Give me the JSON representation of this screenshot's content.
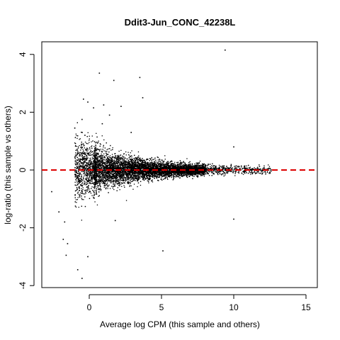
{
  "chart_data": {
    "type": "scatter",
    "title": "Ddit3-Jun_CONC_42238L",
    "xlabel": "Average log CPM (this sample and others)",
    "ylabel": "log-ratio (this sample vs others)",
    "xlim": [
      -2.9,
      15.9
    ],
    "ylim": [
      -4.2,
      4.45
    ],
    "x_ticks": [
      0,
      5,
      10,
      15
    ],
    "y_ticks": [
      -4,
      -2,
      0,
      2,
      4
    ],
    "point_color": "#000000",
    "reference_line": {
      "y": 0,
      "color": "#dd0000",
      "style": "dashed"
    },
    "dense_cloud": {
      "x_range": [
        -1.0,
        12.6
      ],
      "description_of_spread": "wide at low CPM, narrowing toward high CPM",
      "approx_points": 9000
    },
    "outliers": [
      {
        "x": 9.4,
        "y": 4.15
      },
      {
        "x": 0.7,
        "y": 3.35
      },
      {
        "x": 3.5,
        "y": 3.2
      },
      {
        "x": 1.7,
        "y": 3.1
      },
      {
        "x": 3.7,
        "y": 2.5
      },
      {
        "x": -0.4,
        "y": 2.45
      },
      {
        "x": -0.1,
        "y": 2.35
      },
      {
        "x": 1.0,
        "y": 2.25
      },
      {
        "x": 2.2,
        "y": 2.2
      },
      {
        "x": 0.3,
        "y": 2.15
      },
      {
        "x": 1.4,
        "y": 1.9
      },
      {
        "x": -0.5,
        "y": 1.75
      },
      {
        "x": 0.9,
        "y": 1.6
      },
      {
        "x": -1.0,
        "y": 1.45
      },
      {
        "x": -0.3,
        "y": 1.2
      },
      {
        "x": 2.9,
        "y": 1.3
      },
      {
        "x": 10.0,
        "y": 0.8
      },
      {
        "x": -2.6,
        "y": -0.75
      },
      {
        "x": -2.1,
        "y": -1.45
      },
      {
        "x": -1.7,
        "y": -1.8
      },
      {
        "x": -1.8,
        "y": -2.4
      },
      {
        "x": -1.5,
        "y": -2.55
      },
      {
        "x": -1.6,
        "y": -2.95
      },
      {
        "x": -0.1,
        "y": -3.0
      },
      {
        "x": -0.8,
        "y": -3.45
      },
      {
        "x": -0.5,
        "y": -3.75
      },
      {
        "x": 5.1,
        "y": -2.8
      },
      {
        "x": 10.0,
        "y": -1.7
      },
      {
        "x": 1.8,
        "y": -1.75
      }
    ]
  }
}
